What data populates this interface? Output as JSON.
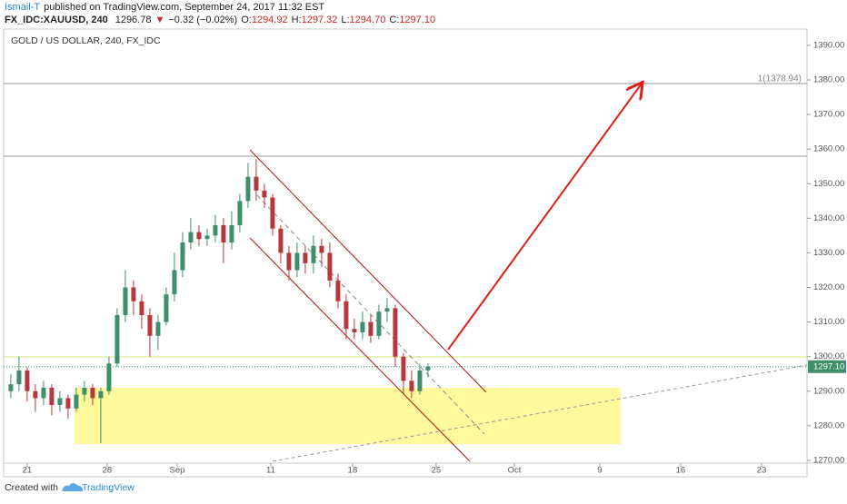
{
  "header": {
    "author": "Ismail-T",
    "published": "published on TradingView.com, September 24, 2017 11:32 EST",
    "symbol": "FX_IDC:XAUUSD, 240",
    "last": "1296.78",
    "arrow": "▼",
    "change": "−0.32 (−0.02%)",
    "ohlc": [
      {
        "key": "O:",
        "value": "1294.92"
      },
      {
        "key": "H:",
        "value": "1297.32"
      },
      {
        "key": "L:",
        "value": "1294.70"
      },
      {
        "key": "C:",
        "value": "1297.10"
      }
    ]
  },
  "chart_data": {
    "type": "candlestick",
    "title": "GOLD / US DOLLAR, 240, FX_IDC",
    "up_color": "#3f8f6c",
    "down_color": "#b5393c",
    "x": [
      -1,
      -0.5,
      0,
      0.5,
      1,
      1.5,
      2,
      2.5,
      3,
      3.5,
      4,
      4.5,
      5,
      5.5,
      6,
      6.5,
      7,
      7.5,
      8,
      8.5,
      9,
      9.5,
      10,
      10.5,
      11,
      11.5,
      12,
      12.5,
      13,
      13.5,
      14,
      14.5,
      15,
      15.5,
      16,
      16.5,
      17,
      17.5,
      18,
      18.5,
      19,
      19.5,
      20,
      20.5,
      21,
      21.5,
      22,
      22.5,
      23,
      23.5,
      24,
      24.5
    ],
    "open": [
      1290,
      1292,
      1296,
      1290,
      1288,
      1291,
      1286,
      1288,
      1285,
      1289,
      1291,
      1288,
      1290,
      1298,
      1312,
      1320,
      1316,
      1312,
      1306,
      1310,
      1318,
      1325,
      1333,
      1336,
      1334,
      1335,
      1338,
      1333,
      1338,
      1345,
      1352,
      1348,
      1346,
      1337,
      1330,
      1325,
      1330,
      1327,
      1332,
      1330,
      1322,
      1316,
      1308,
      1307,
      1310,
      1306,
      1313,
      1314,
      1300,
      1293,
      1290,
      1296
    ],
    "high": [
      1295,
      1300,
      1297,
      1292,
      1293,
      1292,
      1290,
      1289,
      1291,
      1293,
      1292,
      1291,
      1300,
      1314,
      1325,
      1322,
      1318,
      1314,
      1312,
      1320,
      1330,
      1336,
      1340,
      1338,
      1337,
      1341,
      1340,
      1342,
      1347,
      1356,
      1357,
      1350,
      1347,
      1338,
      1332,
      1333,
      1332,
      1335,
      1334,
      1333,
      1324,
      1318,
      1311,
      1313,
      1312,
      1315,
      1317,
      1315,
      1301,
      1296,
      1298,
      1298
    ],
    "low": [
      1288,
      1290,
      1287,
      1284,
      1286,
      1283,
      1284,
      1282,
      1284,
      1287,
      1286,
      1275,
      1289,
      1297,
      1310,
      1312,
      1308,
      1300,
      1302,
      1309,
      1316,
      1323,
      1331,
      1332,
      1332,
      1333,
      1327,
      1331,
      1336,
      1343,
      1345,
      1343,
      1335,
      1327,
      1322,
      1323,
      1324,
      1324,
      1326,
      1320,
      1314,
      1305,
      1305,
      1305,
      1304,
      1305,
      1310,
      1297,
      1289,
      1288,
      1289,
      1294
    ],
    "close": [
      1292,
      1296,
      1290,
      1288,
      1291,
      1286,
      1288,
      1285,
      1289,
      1291,
      1288,
      1290,
      1298,
      1312,
      1320,
      1316,
      1312,
      1306,
      1310,
      1318,
      1325,
      1333,
      1336,
      1334,
      1335,
      1338,
      1333,
      1338,
      1345,
      1352,
      1348,
      1346,
      1337,
      1330,
      1325,
      1330,
      1327,
      1332,
      1330,
      1322,
      1316,
      1308,
      1307,
      1310,
      1306,
      1313,
      1314,
      1300,
      1293,
      1290,
      1296,
      1297.1
    ],
    "price_label": "1297.10",
    "level_label": "1(1378.94)",
    "xlim": [
      -1.44,
      47.67
    ],
    "xticks": [
      {
        "value": 0,
        "label": "21"
      },
      {
        "value": 4.89,
        "label": "28"
      },
      {
        "value": 9.17,
        "label": "Sep"
      },
      {
        "value": 14.89,
        "label": "11"
      },
      {
        "value": 19.89,
        "label": "18"
      },
      {
        "value": 25,
        "label": "25"
      },
      {
        "value": 29.78,
        "label": "Oct"
      },
      {
        "value": 35,
        "label": "9"
      },
      {
        "value": 39.94,
        "label": "16"
      },
      {
        "value": 44.89,
        "label": "23"
      }
    ],
    "ylim": [
      1269.2,
      1394.7
    ],
    "yticks": [
      {
        "value": 1270,
        "label": "1270.00"
      },
      {
        "value": 1280,
        "label": "1280.00"
      },
      {
        "value": 1290,
        "label": "1290.00"
      },
      {
        "value": 1300,
        "label": "1300.00"
      },
      {
        "value": 1310,
        "label": "1310.00"
      },
      {
        "value": 1320,
        "label": "1320.00"
      },
      {
        "value": 1330,
        "label": "1330.00"
      },
      {
        "value": 1340,
        "label": "1340.00"
      },
      {
        "value": 1350,
        "label": "1350.00"
      },
      {
        "value": 1360,
        "label": "1360.00"
      },
      {
        "value": 1370,
        "label": "1370.00"
      },
      {
        "value": 1380,
        "label": "1380.00"
      },
      {
        "value": 1390,
        "label": "1390.00"
      }
    ]
  },
  "footer": {
    "created": "Created with",
    "brand": "TradingView"
  }
}
